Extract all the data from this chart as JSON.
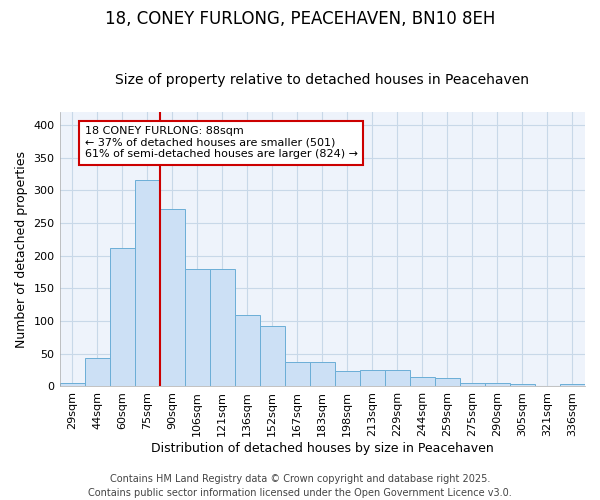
{
  "title": "18, CONEY FURLONG, PEACEHAVEN, BN10 8EH",
  "subtitle": "Size of property relative to detached houses in Peacehaven",
  "xlabel": "Distribution of detached houses by size in Peacehaven",
  "ylabel": "Number of detached properties",
  "categories": [
    "29sqm",
    "44sqm",
    "60sqm",
    "75sqm",
    "90sqm",
    "106sqm",
    "121sqm",
    "136sqm",
    "152sqm",
    "167sqm",
    "183sqm",
    "198sqm",
    "213sqm",
    "229sqm",
    "244sqm",
    "259sqm",
    "275sqm",
    "290sqm",
    "305sqm",
    "321sqm",
    "336sqm"
  ],
  "values": [
    5,
    44,
    212,
    315,
    272,
    180,
    180,
    110,
    92,
    38,
    38,
    23,
    25,
    25,
    15,
    13,
    5,
    6,
    3,
    1,
    3
  ],
  "bar_color": "#cce0f5",
  "bar_edge_color": "#6baed6",
  "vline_x_index": 4,
  "vline_color": "#cc0000",
  "annotation_text": "18 CONEY FURLONG: 88sqm\n← 37% of detached houses are smaller (501)\n61% of semi-detached houses are larger (824) →",
  "annotation_box_facecolor": "#ffffff",
  "annotation_box_edgecolor": "#cc0000",
  "ylim": [
    0,
    420
  ],
  "yticks": [
    0,
    50,
    100,
    150,
    200,
    250,
    300,
    350,
    400
  ],
  "grid_color": "#c8d8e8",
  "bg_color": "#ffffff",
  "plot_bg_color": "#eef3fb",
  "title_fontsize": 12,
  "subtitle_fontsize": 10,
  "axis_label_fontsize": 9,
  "tick_fontsize": 8,
  "annotation_fontsize": 8,
  "footer": "Contains HM Land Registry data © Crown copyright and database right 2025.\nContains public sector information licensed under the Open Government Licence v3.0.",
  "footer_fontsize": 7
}
